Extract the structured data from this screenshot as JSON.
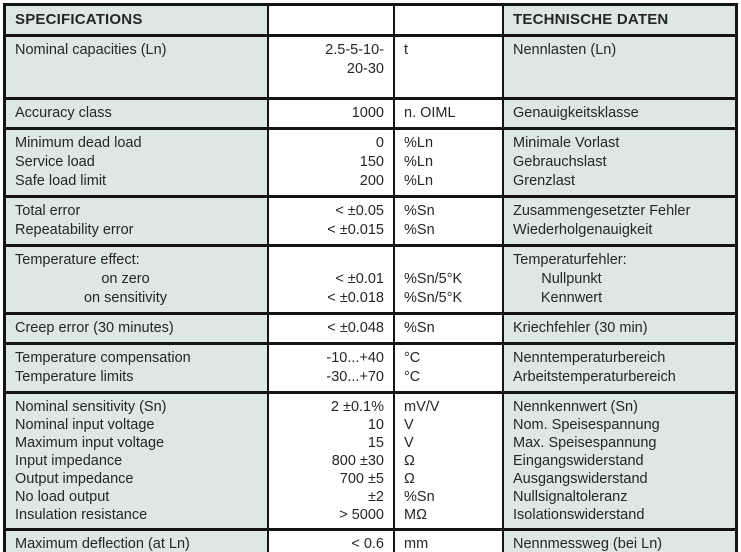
{
  "header": {
    "left": "SPECIFICATIONS",
    "right": "TECHNISCHE DATEN"
  },
  "colors": {
    "label_bg": "#dde8e3",
    "value_bg": "#ffffff",
    "border": "#141414",
    "text": "#262626"
  },
  "rows": [
    {
      "en": [
        "Nominal capacities (Ln)"
      ],
      "value": [
        "2.5-5-10-",
        "20-30"
      ],
      "unit": [
        "t"
      ],
      "de": [
        "Nennlasten (Ln)"
      ]
    },
    {
      "en": [
        "Accuracy class"
      ],
      "value": [
        "1000"
      ],
      "unit": [
        "n. OIML"
      ],
      "de": [
        "Genauigkeitsklasse"
      ]
    },
    {
      "en": [
        "Minimum dead load",
        "Service load",
        "Safe load limit"
      ],
      "value": [
        "0",
        "150",
        "200"
      ],
      "unit": [
        "%Ln",
        "%Ln",
        "%Ln"
      ],
      "de": [
        "Minimale Vorlast",
        "Gebrauchslast",
        "Grenzlast"
      ]
    },
    {
      "en": [
        "Total error",
        "Repeatability error"
      ],
      "value": [
        "< ±0.05",
        "< ±0.015"
      ],
      "unit": [
        "%Sn",
        "%Sn"
      ],
      "de": [
        "Zusammengesetzter Fehler",
        "Wiederholgenauigkeit"
      ]
    },
    {
      "en": [
        "Temperature effect:",
        "on zero",
        "on sensitivity"
      ],
      "value": [
        "",
        "< ±0.01",
        "< ±0.018"
      ],
      "unit": [
        "",
        "%Sn/5°K",
        "%Sn/5°K"
      ],
      "de": [
        "Temperaturfehler:",
        "Nullpunkt",
        "Kennwert"
      ]
    },
    {
      "en": [
        "Creep error (30 minutes)"
      ],
      "value": [
        "< ±0.048"
      ],
      "unit": [
        "%Sn"
      ],
      "de": [
        "Kriechfehler (30 min)"
      ]
    },
    {
      "en": [
        "Temperature compensation",
        "Temperature limits"
      ],
      "value": [
        "-10...+40",
        "-30...+70"
      ],
      "unit": [
        "°C",
        "°C"
      ],
      "de": [
        "Nenntemperaturbereich",
        "Arbeitstemperaturbereich"
      ]
    },
    {
      "en": [
        "Nominal sensitivity (Sn)",
        "Nominal input voltage",
        "Maximum input voltage",
        "Input impedance",
        "Output impedance",
        "No load output",
        "Insulation resistance"
      ],
      "value": [
        "2 ±0.1%",
        "10",
        "15",
        "800 ±30",
        "700 ±5",
        "±2",
        "> 5000"
      ],
      "unit": [
        "mV/V",
        "V",
        "V",
        "Ω",
        "Ω",
        "%Sn",
        "MΩ"
      ],
      "de": [
        "Nennkennwert (Sn)",
        "Nom. Speisespannung",
        "Max. Speisespannung",
        "Eingangswiderstand",
        "Ausgangswiderstand",
        "Nullsignaltoleranz",
        "Isolationswiderstand"
      ]
    },
    {
      "en": [
        "Maximum deflection (at Ln)"
      ],
      "value": [
        "< 0.6"
      ],
      "unit": [
        "mm"
      ],
      "de": [
        "Nennmessweg (bei Ln)"
      ]
    }
  ]
}
